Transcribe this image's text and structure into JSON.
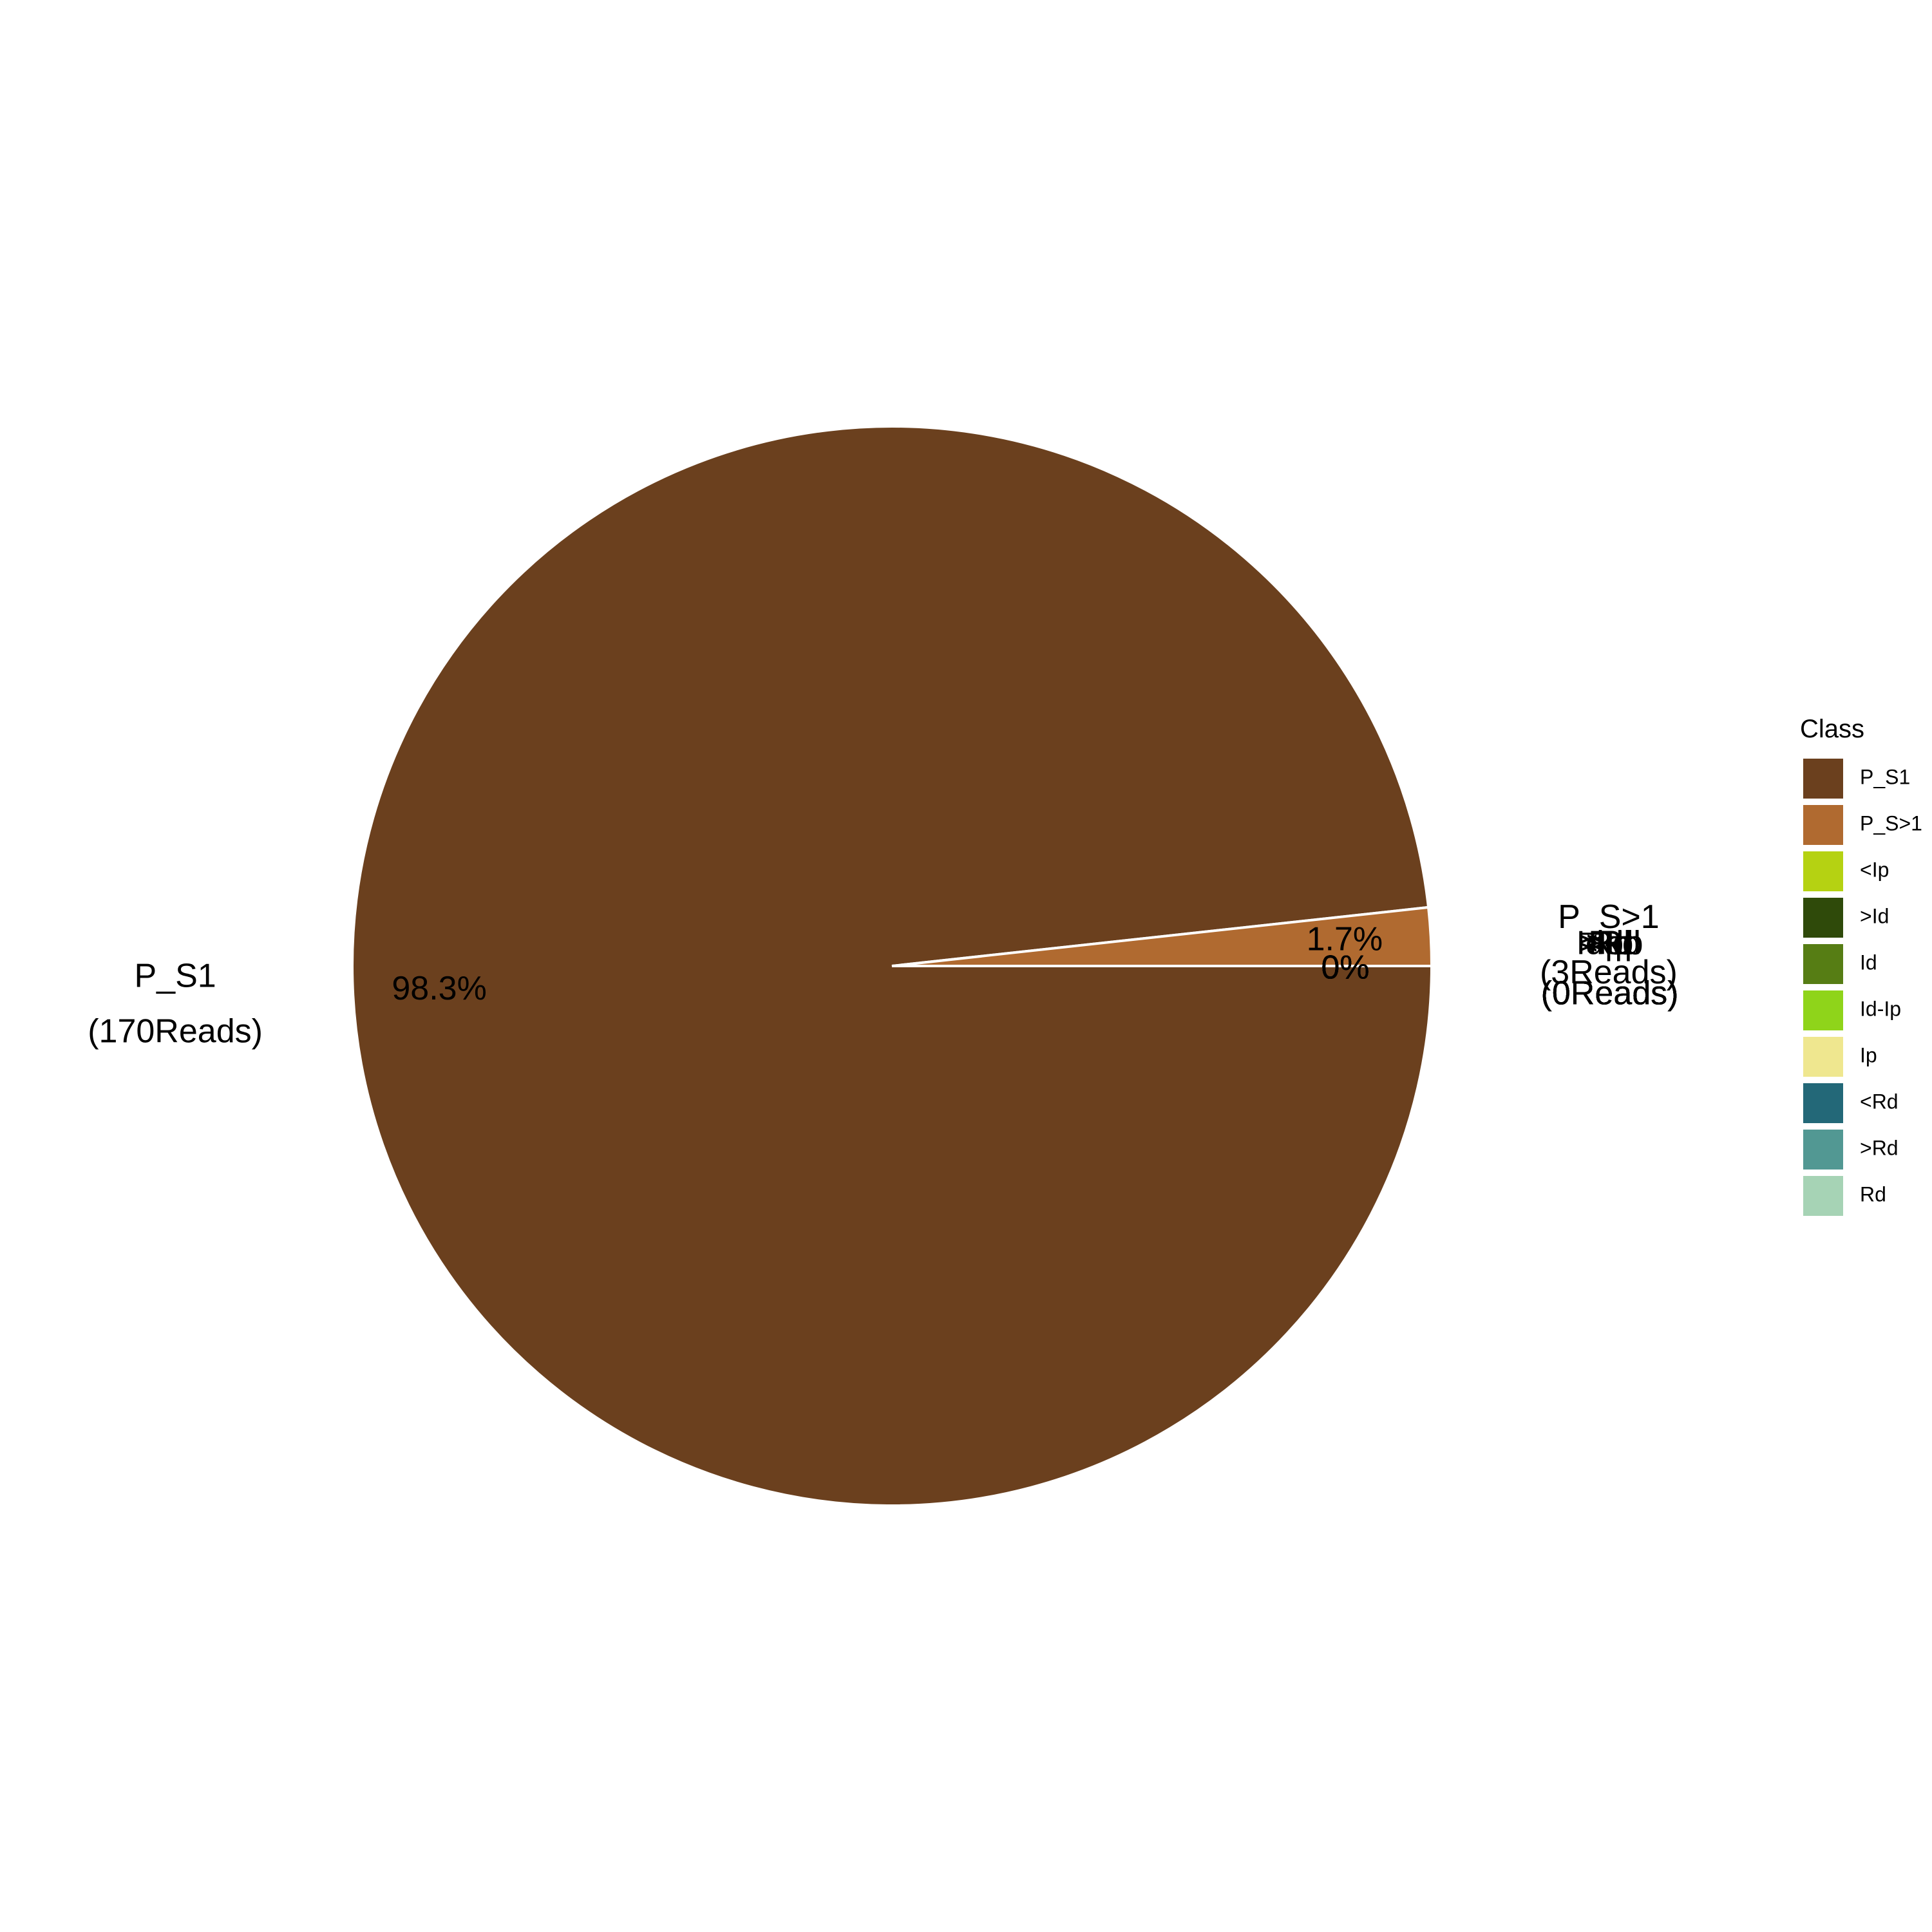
{
  "chart_data": {
    "type": "pie",
    "legend_title": "Class",
    "legend_position": "right",
    "slices": [
      {
        "name": "P_S1",
        "reads": 170,
        "percent_label": "98.3%",
        "reads_label": "(170Reads)",
        "color": "#6B401E"
      },
      {
        "name": "P_S>1",
        "reads": 3,
        "percent_label": "1.7%",
        "reads_label": "(3Reads)",
        "color": "#B06A30"
      },
      {
        "name": "<Ip",
        "reads": 0,
        "percent_label": "0%",
        "reads_label": "(0Reads)",
        "color": "#B5D212"
      },
      {
        "name": ">Id",
        "reads": 0,
        "percent_label": "0%",
        "reads_label": "(0Reads)",
        "color": "#2F4A0A"
      },
      {
        "name": "Id",
        "reads": 0,
        "percent_label": "0%",
        "reads_label": "(0Reads)",
        "color": "#567D14"
      },
      {
        "name": "Id-Ip",
        "reads": 0,
        "percent_label": "0%",
        "reads_label": "(0Reads)",
        "color": "#8FD41A"
      },
      {
        "name": "Ip",
        "reads": 0,
        "percent_label": "0%",
        "reads_label": "(0Reads)",
        "color": "#EFE78F"
      },
      {
        "name": "<Rd",
        "reads": 0,
        "percent_label": "0%",
        "reads_label": "(0Reads)",
        "color": "#236878"
      },
      {
        "name": ">Rd",
        "reads": 0,
        "percent_label": "0%",
        "reads_label": "(0Reads)",
        "color": "#529893"
      },
      {
        "name": "Rd",
        "reads": 0,
        "percent_label": "0%",
        "reads_label": "(0Reads)",
        "color": "#A6D3B5"
      }
    ]
  }
}
